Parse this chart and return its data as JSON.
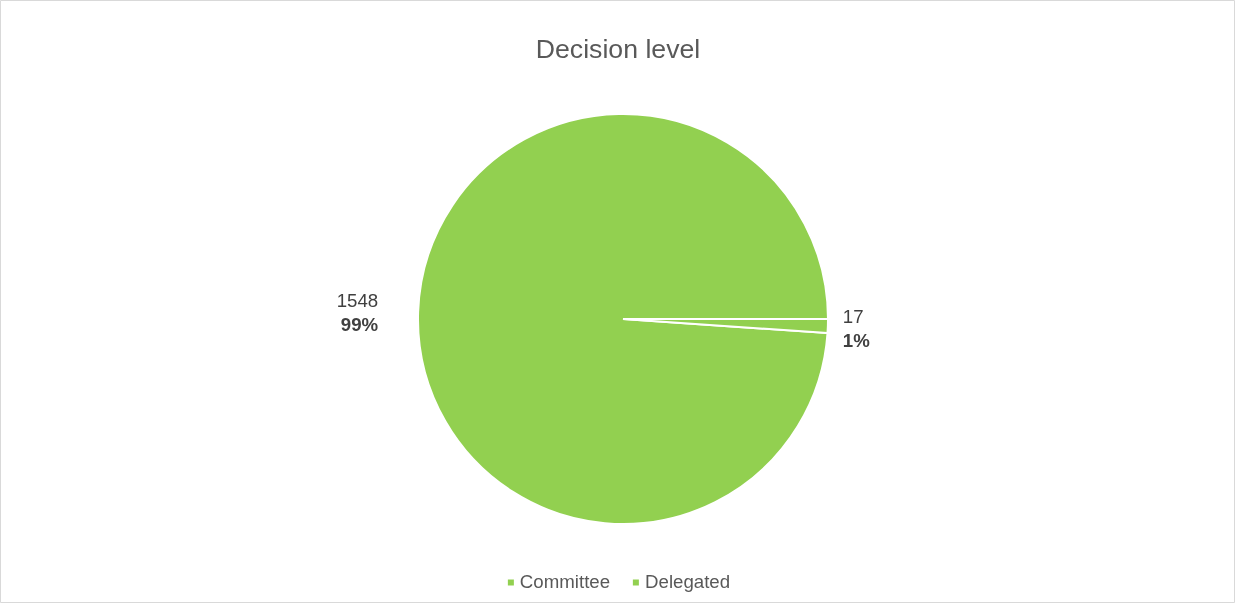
{
  "chart_data": {
    "type": "pie",
    "title": "Decision level",
    "categories": [
      "Committee",
      "Delegated"
    ],
    "values": [
      1548,
      17
    ],
    "colors": [
      "#92d050",
      "#92d050"
    ],
    "value_labels": [
      "1548\n99%",
      "17\n1%"
    ],
    "legend": "bottom"
  }
}
